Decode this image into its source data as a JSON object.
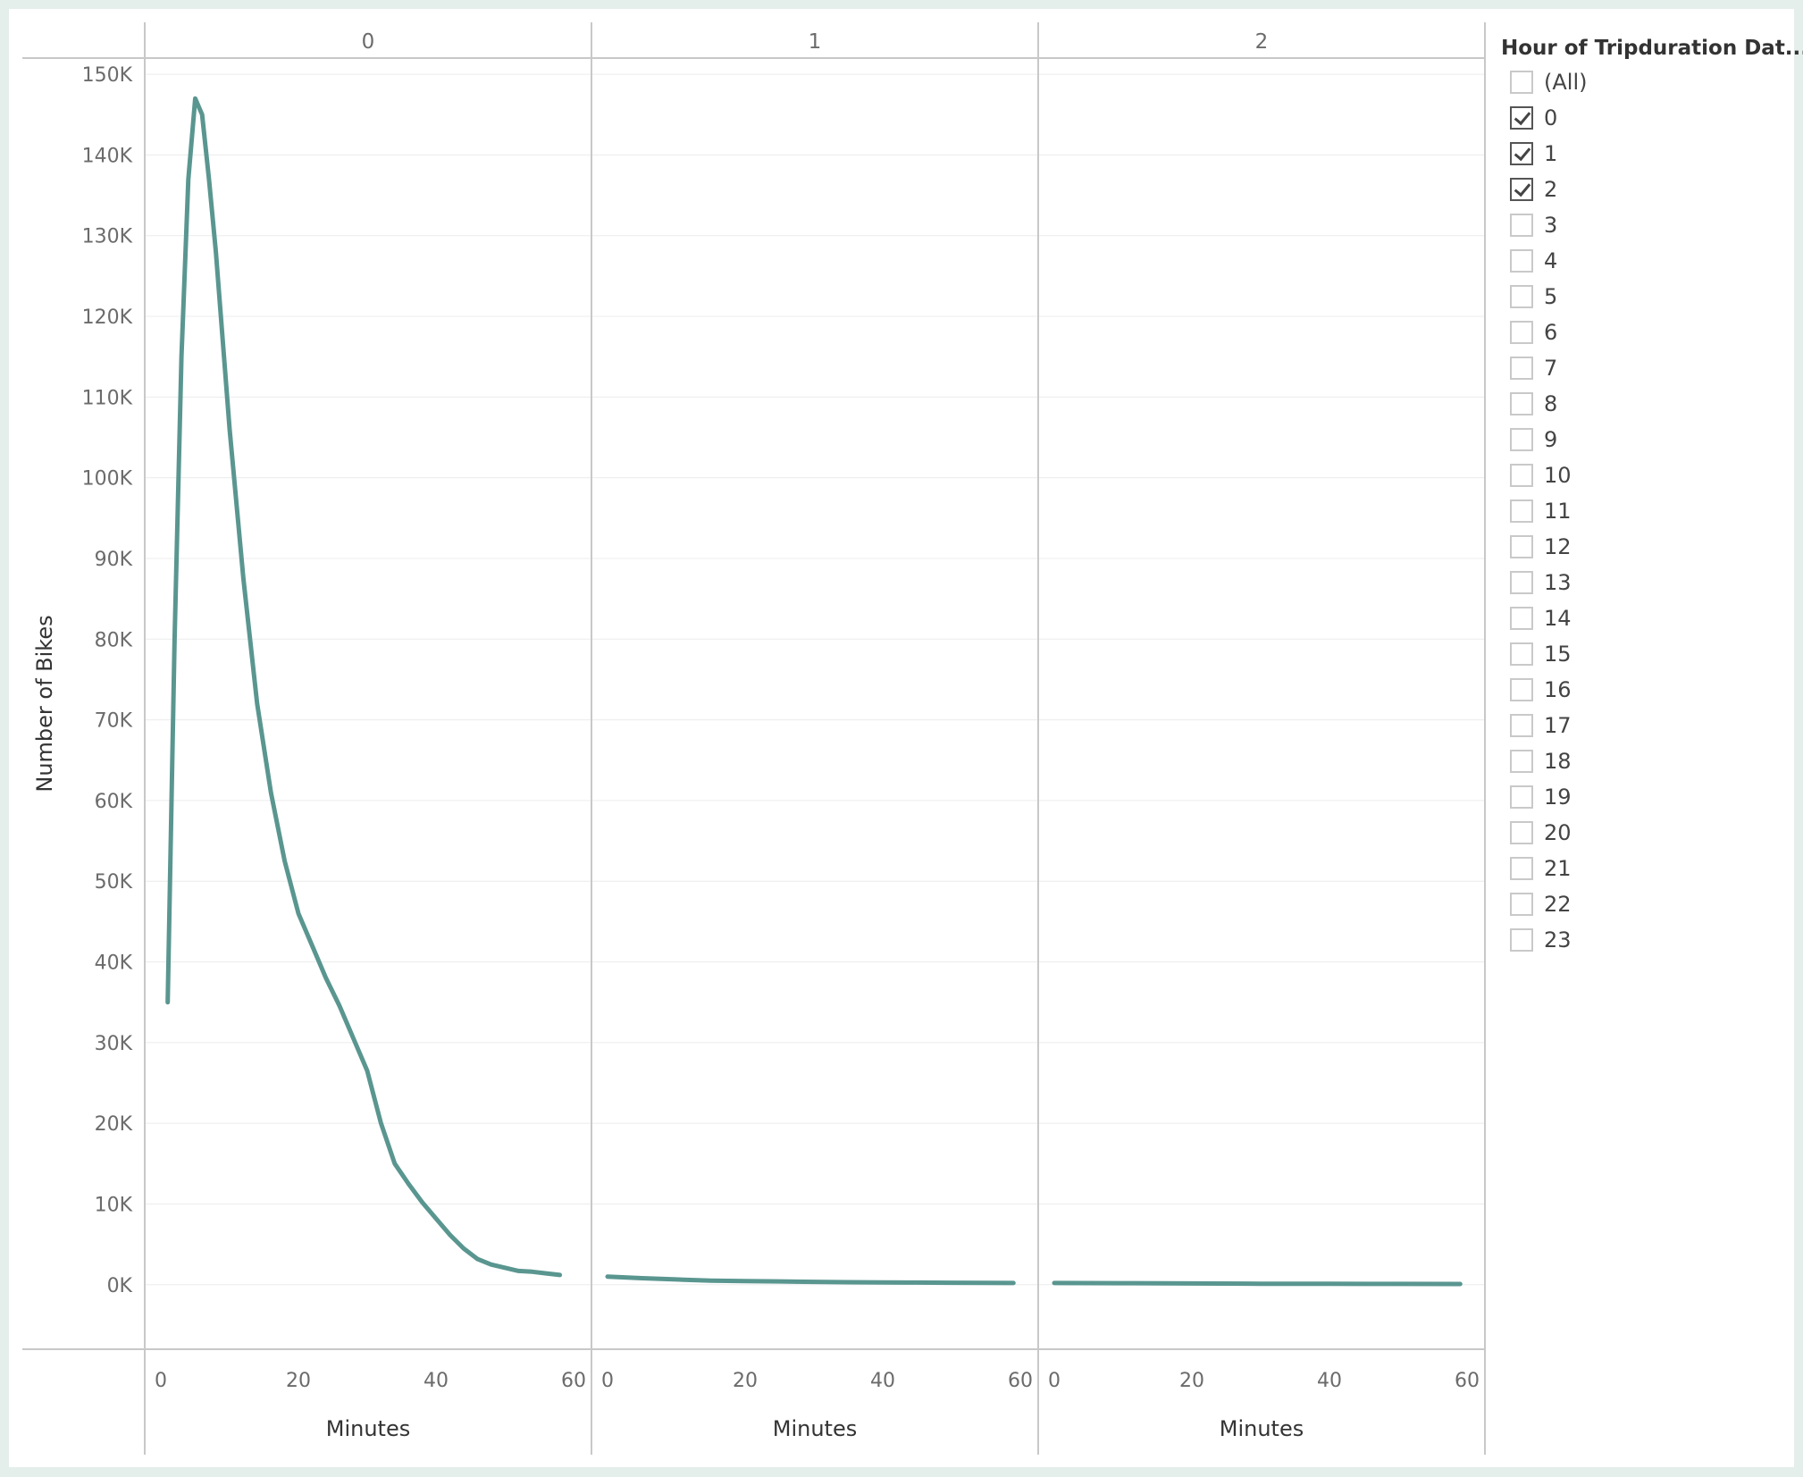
{
  "chart_data": {
    "type": "line",
    "facet_by": "Hour of Tripduration Date",
    "panels": [
      "0",
      "1",
      "2"
    ],
    "xlabel": "Minutes",
    "ylabel": "Number of Bikes",
    "xlim": [
      0,
      60
    ],
    "ylim": [
      -8000,
      152000
    ],
    "x_ticks": [
      0,
      20,
      40,
      60
    ],
    "x_tick_labels": [
      "0",
      "20",
      "40",
      "60"
    ],
    "y_ticks": [
      0,
      10000,
      20000,
      30000,
      40000,
      50000,
      60000,
      70000,
      80000,
      90000,
      100000,
      110000,
      120000,
      130000,
      140000,
      150000
    ],
    "y_tick_labels": [
      "0K",
      "10K",
      "20K",
      "30K",
      "40K",
      "50K",
      "60K",
      "70K",
      "80K",
      "90K",
      "100K",
      "110K",
      "120K",
      "130K",
      "140K",
      "150K"
    ],
    "grid": true,
    "line_color": "#5a9690",
    "series": [
      {
        "panel": "0",
        "x": [
          1,
          2,
          3,
          4,
          5,
          6,
          7,
          8,
          9,
          10,
          12,
          14,
          16,
          18,
          20,
          22,
          24,
          26,
          28,
          30,
          32,
          34,
          36,
          38,
          40,
          42,
          44,
          46,
          48,
          50,
          52,
          54,
          56,
          58
        ],
        "values": [
          35000,
          80000,
          115000,
          137000,
          147000,
          145000,
          137000,
          128000,
          117000,
          106000,
          87500,
          72000,
          61000,
          52500,
          46000,
          42000,
          38000,
          34500,
          30500,
          26500,
          20000,
          15000,
          12500,
          10200,
          8200,
          6200,
          4500,
          3200,
          2500,
          2100,
          1700,
          1600,
          1400,
          1200
        ]
      },
      {
        "panel": "1",
        "x": [
          0,
          5,
          10,
          15,
          20,
          25,
          30,
          35,
          40,
          45,
          50,
          55,
          59
        ],
        "values": [
          1000,
          800,
          650,
          500,
          450,
          400,
          350,
          300,
          280,
          260,
          240,
          220,
          200
        ]
      },
      {
        "panel": "2",
        "x": [
          0,
          10,
          20,
          30,
          40,
          50,
          59
        ],
        "values": [
          200,
          180,
          150,
          120,
          100,
          90,
          80
        ]
      }
    ]
  },
  "legend": {
    "title": "Hour of Tripduration Dat...",
    "items": [
      {
        "label": "(All)",
        "checked": false
      },
      {
        "label": "0",
        "checked": true
      },
      {
        "label": "1",
        "checked": true
      },
      {
        "label": "2",
        "checked": true
      },
      {
        "label": "3",
        "checked": false
      },
      {
        "label": "4",
        "checked": false
      },
      {
        "label": "5",
        "checked": false
      },
      {
        "label": "6",
        "checked": false
      },
      {
        "label": "7",
        "checked": false
      },
      {
        "label": "8",
        "checked": false
      },
      {
        "label": "9",
        "checked": false
      },
      {
        "label": "10",
        "checked": false
      },
      {
        "label": "11",
        "checked": false
      },
      {
        "label": "12",
        "checked": false
      },
      {
        "label": "13",
        "checked": false
      },
      {
        "label": "14",
        "checked": false
      },
      {
        "label": "15",
        "checked": false
      },
      {
        "label": "16",
        "checked": false
      },
      {
        "label": "17",
        "checked": false
      },
      {
        "label": "18",
        "checked": false
      },
      {
        "label": "19",
        "checked": false
      },
      {
        "label": "20",
        "checked": false
      },
      {
        "label": "21",
        "checked": false
      },
      {
        "label": "22",
        "checked": false
      },
      {
        "label": "23",
        "checked": false
      }
    ]
  }
}
